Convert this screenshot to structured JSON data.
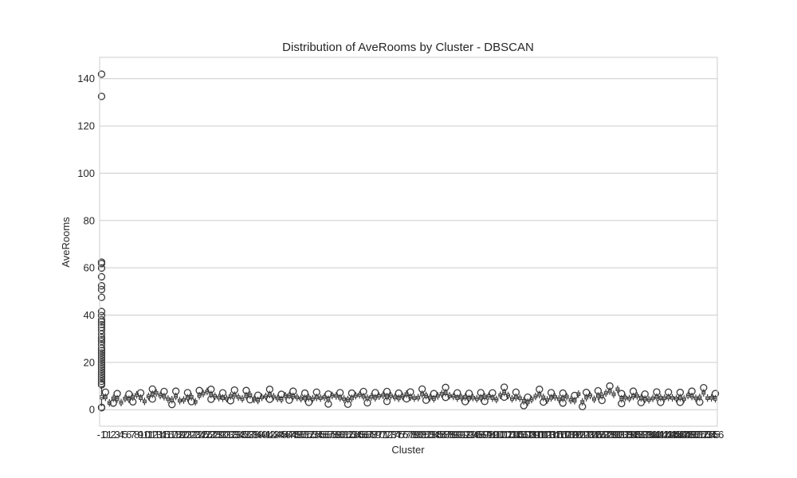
{
  "chart_data": {
    "type": "box",
    "title": "Distribution of AveRooms by Cluster - DBSCAN",
    "xlabel": "Cluster",
    "ylabel": "AveRooms",
    "ylim": [
      -7,
      149
    ],
    "yticks": [
      0,
      20,
      40,
      60,
      80,
      100,
      120,
      140
    ],
    "ytick_labels": [
      "0",
      "20",
      "40",
      "60",
      "80",
      "100",
      "120",
      "140"
    ],
    "grid": true,
    "legend": "none",
    "box_color": "#3a3a3a",
    "edge_color": "#3a3a3a",
    "first_category": "-1",
    "last_category": "156",
    "category_count": 158,
    "noise_cluster": {
      "category": "-1",
      "q1": 4.5,
      "median": 5.2,
      "q3": 6.0,
      "whisker_low": 1.5,
      "whisker_high": 9.5,
      "outliers": [
        141.9,
        132.5,
        62.4,
        61.8,
        59.9,
        56.2,
        52.4,
        50.8,
        47.5,
        41.5,
        39.8,
        38.0,
        37.1,
        36.0,
        34.8,
        33.5,
        32.0,
        30.5,
        29.6,
        28.8,
        27.5,
        26.0,
        25.0,
        24.0,
        23.0,
        22.0,
        21.0,
        20.0,
        19.0,
        18.0,
        17.0,
        16.0,
        15.0,
        14.0,
        13.0,
        12.0,
        11.0,
        10.5,
        1.0,
        0.8
      ]
    },
    "cluster_medians": [
      5.2,
      2.9,
      4.8,
      4.6,
      3.0,
      4.7,
      4.4,
      5.3,
      6.3,
      4.9,
      3.5,
      5.6,
      6.5,
      7.1,
      6.0,
      5.5,
      4.5,
      4.2,
      5.6,
      3.8,
      4.1,
      5.0,
      5.4,
      3.3,
      5.9,
      6.8,
      7.7,
      6.4,
      5.7,
      5.1,
      4.9,
      4.7,
      5.8,
      6.1,
      5.3,
      4.6,
      5.9,
      6.2,
      4.4,
      3.9,
      5.2,
      5.6,
      6.4,
      5.5,
      4.8,
      4.3,
      5.9,
      6.0,
      5.6,
      5.2,
      4.7,
      4.8,
      5.1,
      4.6,
      5.2,
      4.9,
      5.3,
      4.4,
      6.0,
      5.8,
      5.0,
      4.5,
      4.3,
      4.8,
      5.9,
      6.3,
      5.5,
      4.9,
      5.4,
      5.0,
      5.7,
      6.1,
      5.5,
      5.9,
      5.2,
      4.8,
      5.6,
      6.6,
      5.3,
      4.9,
      5.1,
      6.5,
      6.0,
      5.1,
      4.6,
      5.8,
      6.7,
      7.2,
      5.9,
      5.6,
      4.9,
      5.2,
      5.4,
      4.7,
      5.1,
      4.6,
      5.0,
      5.5,
      5.7,
      4.9,
      4.3,
      6.1,
      7.3,
      6.0,
      4.6,
      5.2,
      4.9,
      3.7,
      3.1,
      4.3,
      5.6,
      6.4,
      5.2,
      4.1,
      5.0,
      5.4,
      4.5,
      4.8,
      5.5,
      4.0,
      3.8,
      6.6,
      3.3,
      5.1,
      6.0,
      4.4,
      5.8,
      5.9,
      7.0,
      7.8,
      6.5,
      8.6,
      4.6,
      5.1,
      4.7,
      5.6,
      5.8,
      5.0,
      4.4,
      4.2,
      4.8,
      5.3,
      5.1,
      4.9,
      5.2,
      5.0,
      4.7,
      5.1,
      4.5,
      6.0,
      5.6,
      4.8,
      5.2,
      7.1,
      4.9,
      5.0,
      4.6,
      5.4
    ]
  }
}
